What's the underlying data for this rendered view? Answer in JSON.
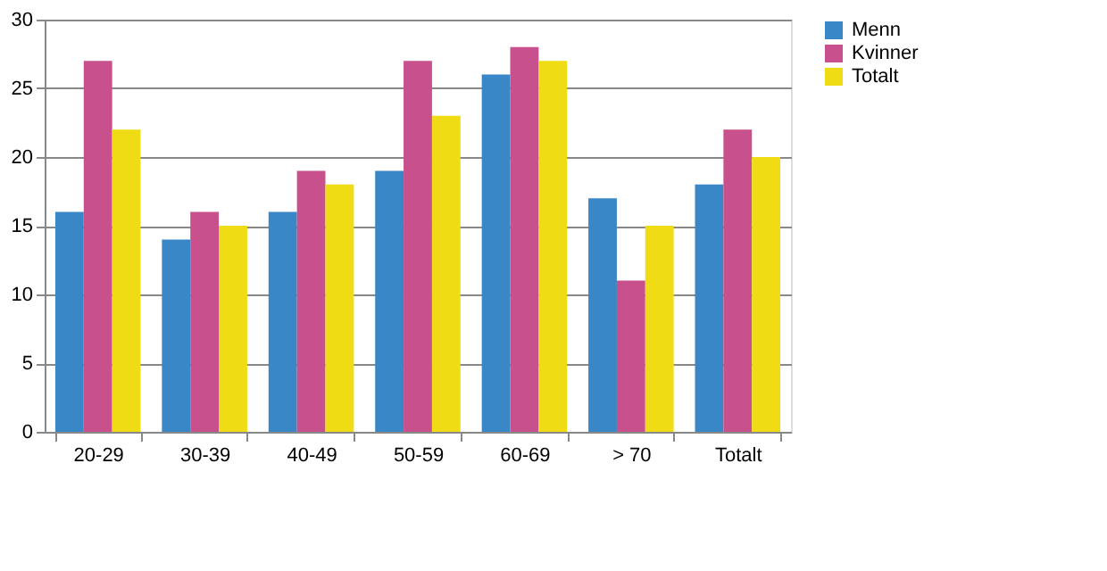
{
  "chart_data": {
    "type": "bar",
    "categories": [
      "20-29",
      "30-39",
      "40-49",
      "50-59",
      "60-69",
      "> 70",
      "Totalt"
    ],
    "series": [
      {
        "name": "Menn",
        "color": "#3a87c8",
        "values": [
          16,
          14,
          16,
          19,
          26,
          17,
          18
        ]
      },
      {
        "name": "Kvinner",
        "color": "#c8508c",
        "values": [
          27,
          16,
          19,
          27,
          28,
          11,
          22
        ]
      },
      {
        "name": "Totalt",
        "color": "#f0dc14",
        "values": [
          22,
          15,
          18,
          23,
          27,
          15,
          20
        ]
      }
    ],
    "ylim": [
      0,
      30
    ],
    "yticks": [
      0,
      5,
      10,
      15,
      20,
      25,
      30
    ],
    "grid": "y",
    "legend": "right"
  }
}
